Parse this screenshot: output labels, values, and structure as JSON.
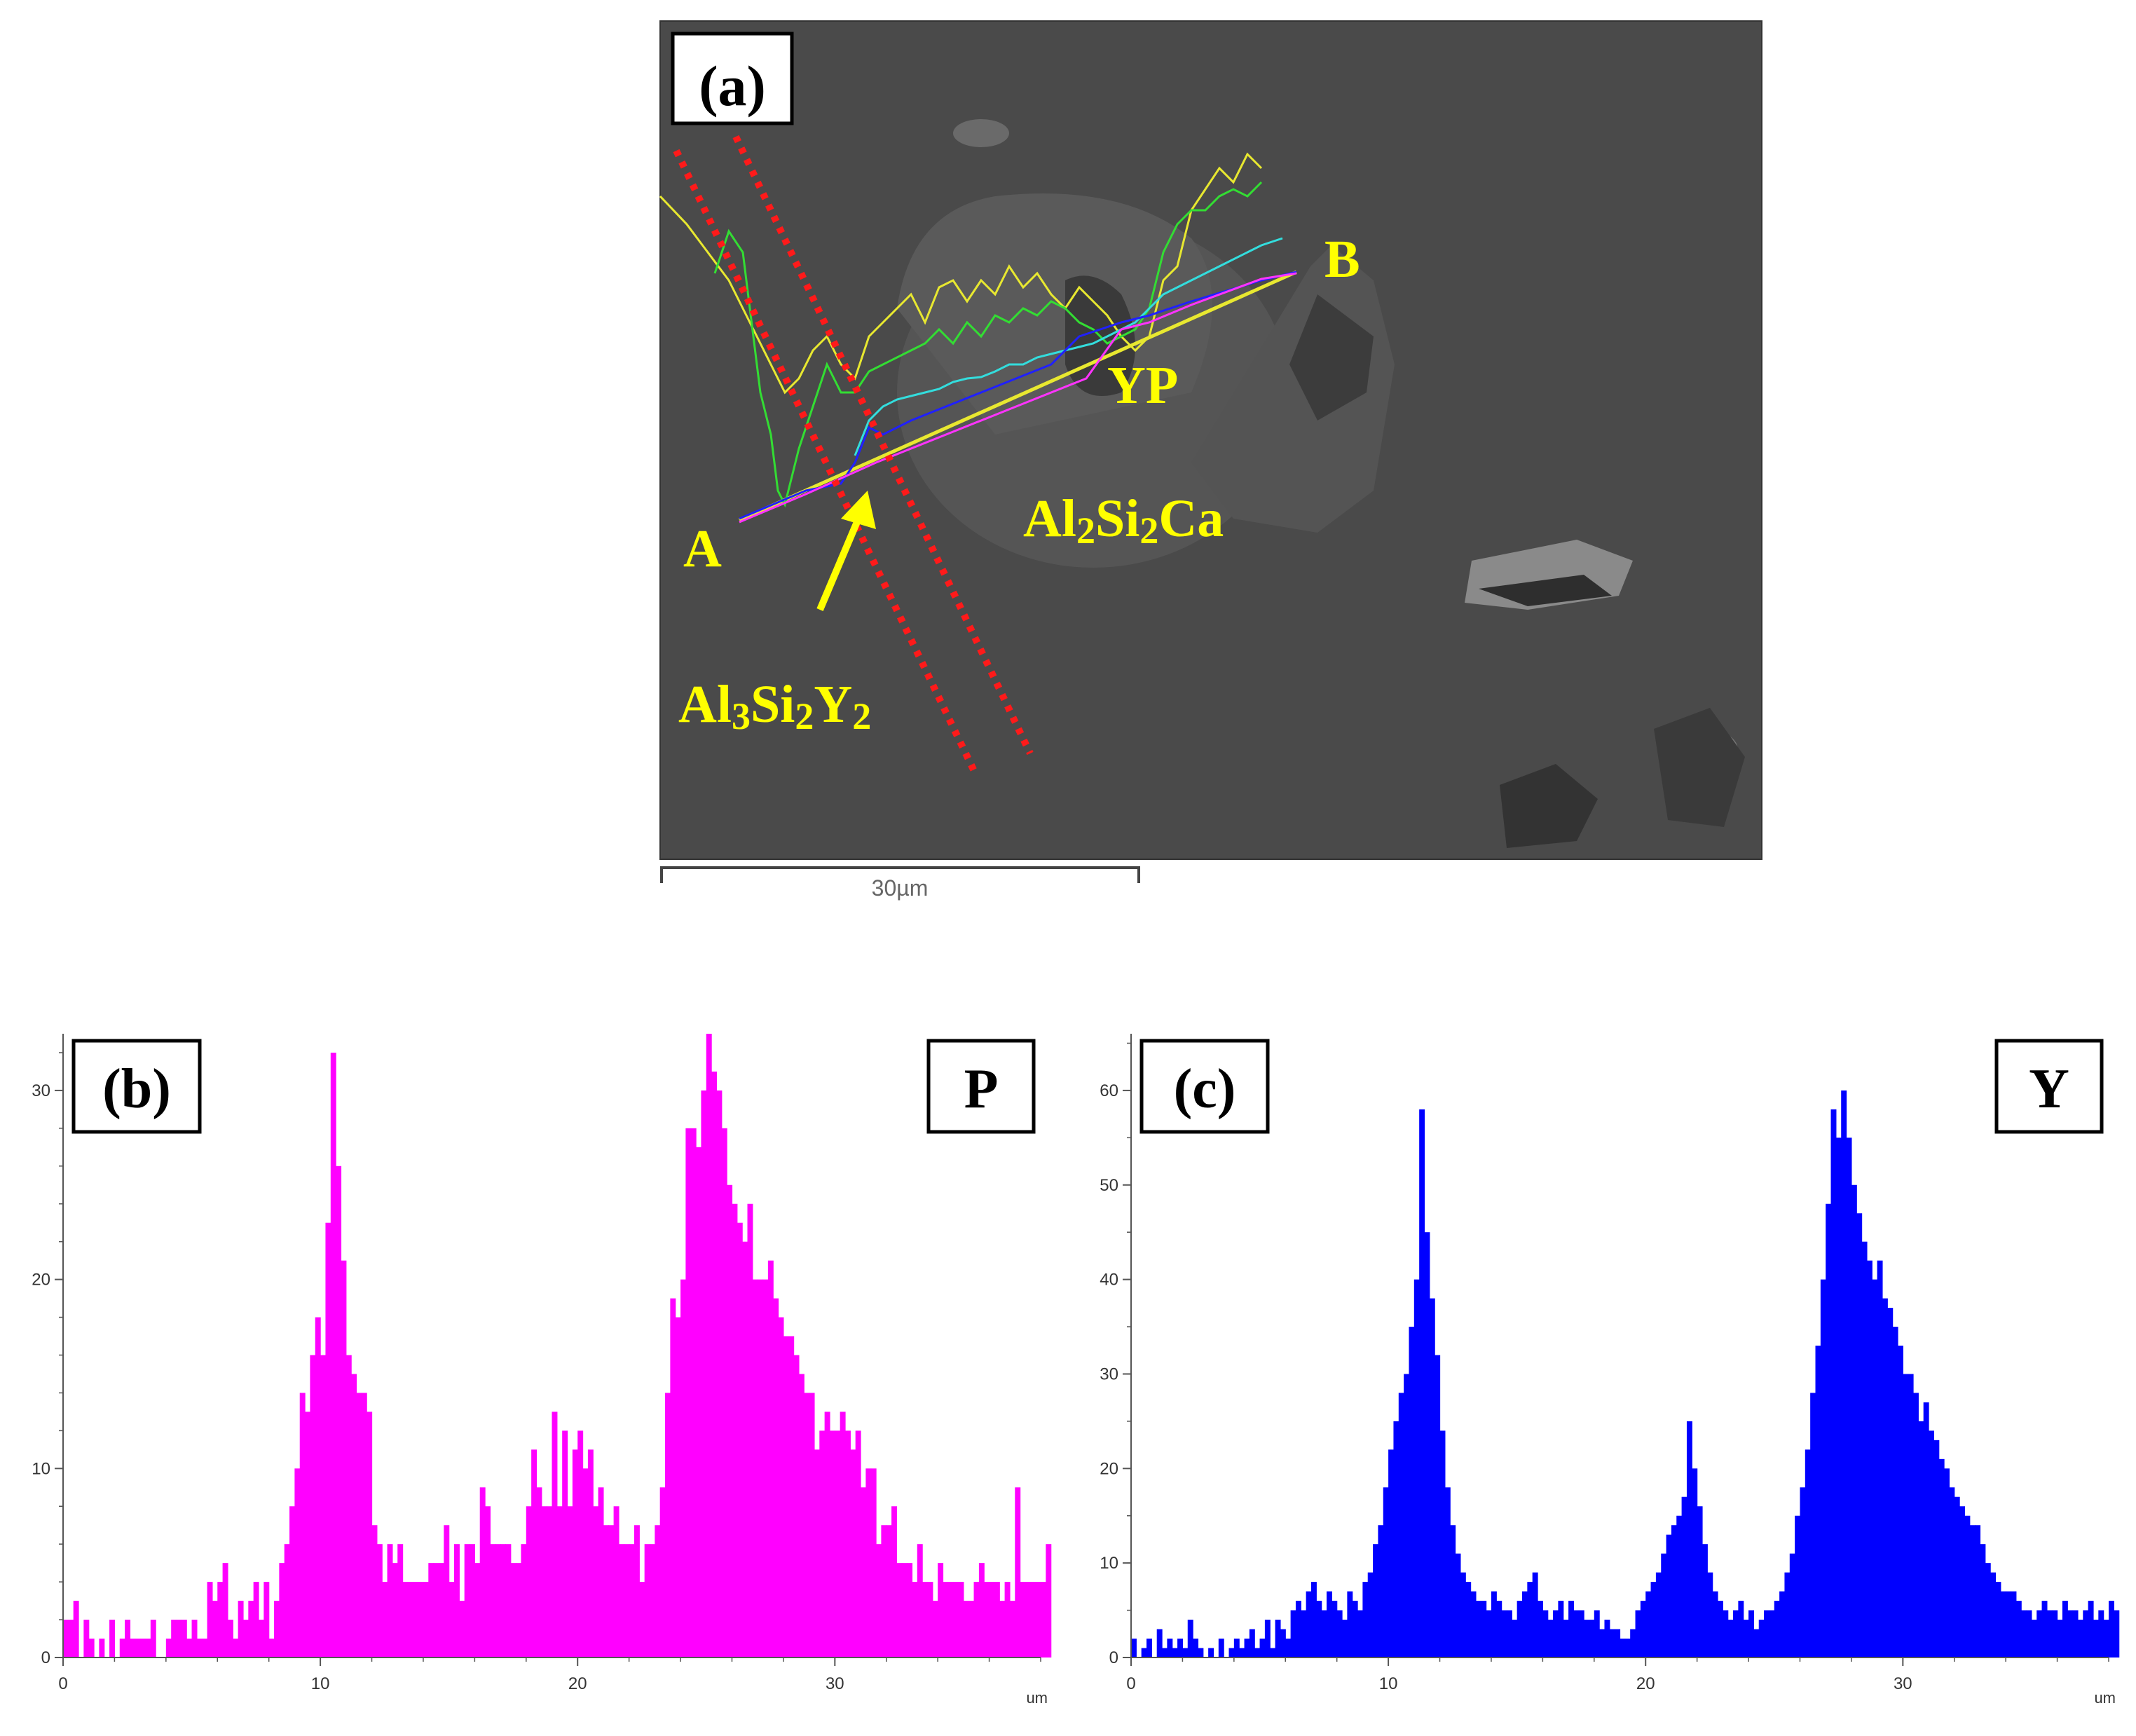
{
  "panel_a": {
    "label": "(a)",
    "point_a": "A",
    "point_b": "B",
    "phase_yp": "YP",
    "phase_al2si2ca": "Al2Si2Ca",
    "phase_al3si2y2": "Al3Si2Y2",
    "scale_bar": "30µm",
    "colors": {
      "background": "#4a4a4a",
      "label_text": "#ffff00",
      "dashed_lines": "#ff1a1a",
      "yellow_trace": "#e8e830",
      "green_trace": "#33dd33",
      "cyan_trace": "#33dddd",
      "blue_trace": "#2020ff",
      "magenta_trace": "#ff33ff"
    }
  },
  "chart_data": [
    {
      "type": "bar",
      "panel": "b",
      "label": "(b)",
      "element": "P",
      "x_unit": "um",
      "xlim": [
        0,
        38
      ],
      "ylim": [
        0,
        33
      ],
      "x_ticks": [
        0,
        10,
        20,
        30
      ],
      "y_ticks": [
        0,
        10,
        20,
        30
      ],
      "color": "#ff00ff",
      "bin_width": 0.2,
      "values": [
        2,
        2,
        3,
        0,
        2,
        1,
        0,
        1,
        0,
        2,
        0,
        1,
        2,
        1,
        1,
        1,
        1,
        2,
        0,
        0,
        1,
        2,
        2,
        2,
        1,
        2,
        1,
        1,
        4,
        3,
        4,
        5,
        2,
        1,
        3,
        2,
        3,
        4,
        2,
        4,
        1,
        3,
        5,
        6,
        8,
        10,
        14,
        13,
        16,
        18,
        16,
        23,
        32,
        26,
        21,
        16,
        15,
        14,
        14,
        13,
        7,
        6,
        4,
        6,
        5,
        6,
        4,
        4,
        4,
        4,
        4,
        5,
        5,
        5,
        7,
        4,
        6,
        3,
        6,
        6,
        5,
        9,
        8,
        6,
        6,
        6,
        6,
        5,
        5,
        6,
        8,
        11,
        9,
        8,
        8,
        13,
        8,
        12,
        8,
        11,
        12,
        10,
        11,
        8,
        9,
        7,
        7,
        8,
        6,
        6,
        6,
        7,
        4,
        6,
        6,
        7,
        9,
        14,
        19,
        18,
        20,
        28,
        28,
        27,
        30,
        33,
        31,
        30,
        28,
        25,
        24,
        23,
        22,
        24,
        20,
        20,
        20,
        21,
        19,
        18,
        17,
        17,
        16,
        15,
        14,
        14,
        11,
        12,
        13,
        12,
        12,
        13,
        12,
        11,
        12,
        9,
        10,
        10,
        6,
        7,
        7,
        8,
        5,
        5,
        5,
        4,
        6,
        4,
        4,
        3,
        5,
        4,
        4,
        4,
        4,
        3,
        3,
        4,
        5,
        4,
        4,
        4,
        3,
        4,
        3,
        9,
        4,
        4,
        4,
        4,
        4,
        6
      ]
    },
    {
      "type": "bar",
      "panel": "c",
      "label": "(c)",
      "element": "Y",
      "x_unit": "um",
      "xlim": [
        0,
        38
      ],
      "ylim": [
        0,
        66
      ],
      "x_ticks": [
        0,
        10,
        20,
        30
      ],
      "y_ticks": [
        0,
        10,
        20,
        30,
        40,
        50,
        60
      ],
      "color": "#0000ff",
      "bin_width": 0.2,
      "values": [
        2,
        0,
        1,
        2,
        0,
        3,
        1,
        2,
        1,
        2,
        1,
        4,
        2,
        1,
        0,
        1,
        0,
        2,
        0,
        1,
        2,
        1,
        2,
        3,
        1,
        2,
        4,
        1,
        4,
        3,
        2,
        5,
        6,
        5,
        7,
        8,
        6,
        5,
        7,
        6,
        5,
        4,
        7,
        6,
        5,
        8,
        9,
        12,
        14,
        18,
        22,
        25,
        28,
        30,
        35,
        40,
        58,
        45,
        38,
        32,
        24,
        18,
        14,
        11,
        9,
        8,
        7,
        6,
        6,
        5,
        7,
        6,
        5,
        5,
        4,
        6,
        7,
        8,
        9,
        6,
        5,
        4,
        5,
        6,
        4,
        6,
        5,
        5,
        4,
        4,
        5,
        3,
        4,
        3,
        3,
        2,
        2,
        3,
        5,
        6,
        7,
        8,
        9,
        11,
        13,
        14,
        15,
        17,
        25,
        20,
        16,
        12,
        9,
        7,
        6,
        5,
        4,
        5,
        6,
        4,
        5,
        3,
        4,
        5,
        5,
        6,
        7,
        9,
        11,
        15,
        18,
        22,
        28,
        33,
        40,
        48,
        58,
        55,
        60,
        55,
        50,
        47,
        44,
        42,
        40,
        42,
        38,
        37,
        35,
        33,
        30,
        30,
        28,
        25,
        27,
        24,
        23,
        21,
        20,
        18,
        17,
        16,
        15,
        14,
        14,
        12,
        10,
        9,
        8,
        7,
        7,
        7,
        6,
        5,
        5,
        4,
        5,
        6,
        5,
        5,
        4,
        6,
        5,
        5,
        4,
        5,
        6,
        4,
        5,
        4,
        6,
        5
      ]
    }
  ]
}
